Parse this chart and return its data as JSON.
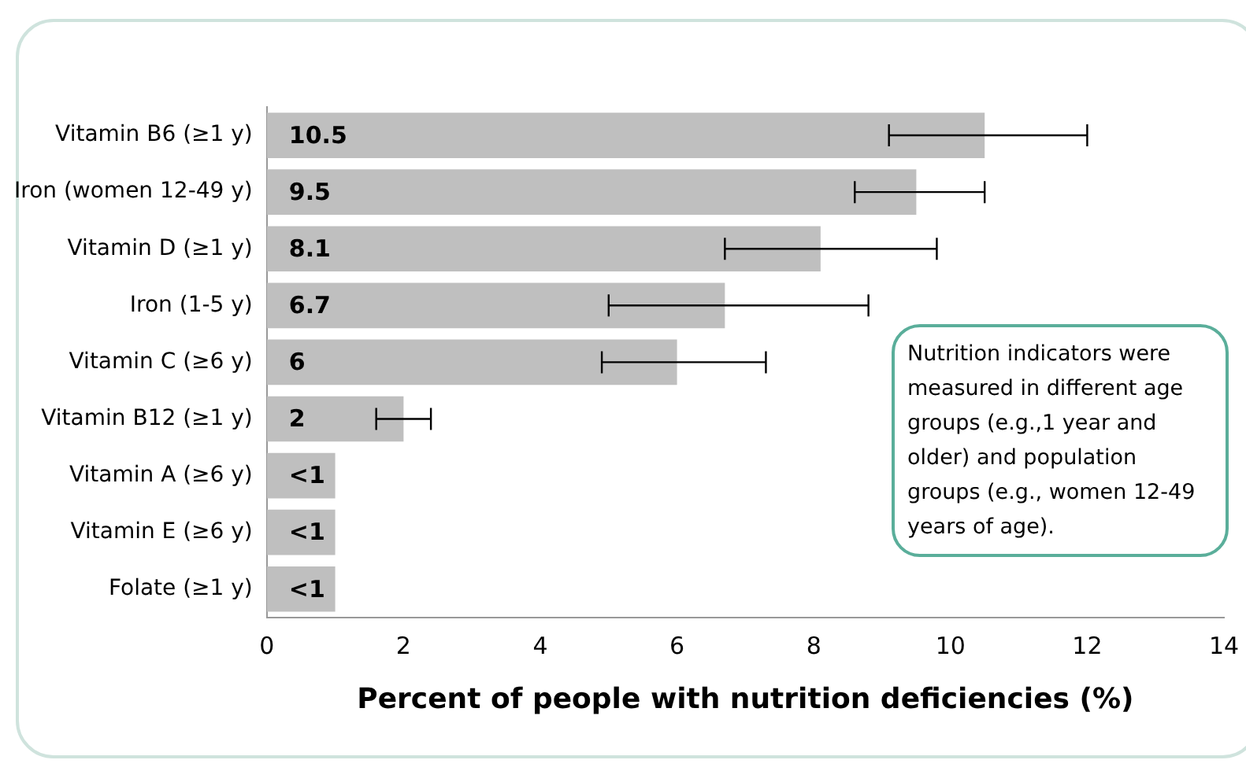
{
  "chart_data": {
    "type": "bar",
    "orientation": "horizontal",
    "xlabel": "Percent of people with nutrition deficiencies (%)",
    "categories": [
      "Vitamin B6 (≥1 y)",
      "Iron (women 12-49 y)",
      "Vitamin D (≥1 y)",
      "Iron (1-5 y)",
      "Vitamin C (≥6 y)",
      "Vitamin B12 (≥1 y)",
      "Vitamin A (≥6 y)",
      "Vitamin E (≥6 y)",
      "Folate (≥1 y)"
    ],
    "values": [
      10.5,
      9.5,
      8.1,
      6.7,
      6,
      2,
      1.0,
      1.0,
      1.0
    ],
    "value_labels": [
      "10.5",
      "9.5",
      "8.1",
      "6.7",
      "6",
      "2",
      "<1",
      "<1",
      "<1"
    ],
    "errors": [
      [
        9.1,
        12.0
      ],
      [
        8.6,
        10.5
      ],
      [
        6.7,
        9.8
      ],
      [
        5.0,
        8.8
      ],
      [
        4.9,
        7.3
      ],
      [
        1.6,
        2.4
      ],
      null,
      null,
      null
    ],
    "color": "#bfbfbf",
    "xlim": [
      0,
      14
    ],
    "xticks": [
      0,
      2,
      4,
      6,
      8,
      10,
      12,
      14
    ],
    "grid": false,
    "legend": false,
    "annotations": [
      "Nutrition indicators were measured in different age groups (e.g.,1 year and older) and population groups (e.g., women 12-49 years of age)."
    ]
  }
}
